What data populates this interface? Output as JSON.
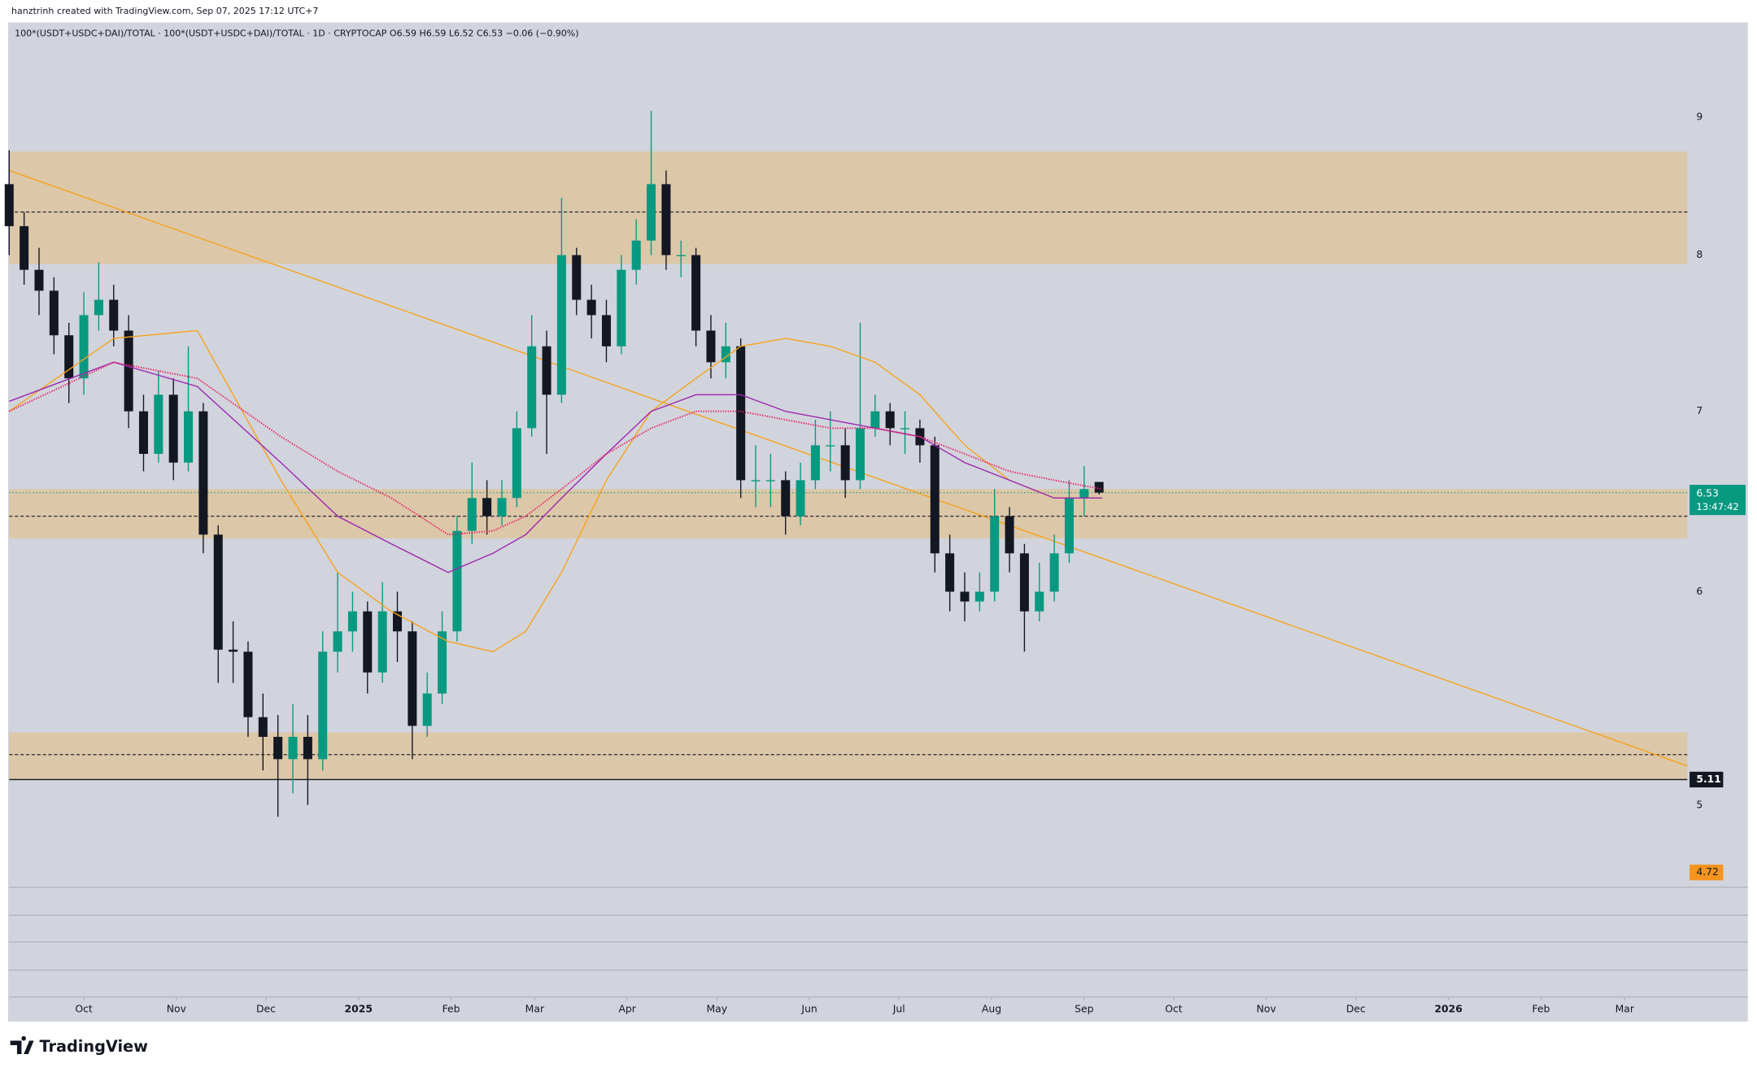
{
  "header": "hanztrinh created with TradingView.com, Sep 07, 2025 17:12 UTC+7",
  "brand": "TradingView",
  "chart_data": {
    "type": "candlestick",
    "legend": "100*(USDT+USDC+DAI)/TOTAL · 100*(USDT+USDC+DAI)/TOTAL · 1D · CRYPTOCAP  O6.59  H6.59  L6.52  C6.53  −0.06 (−0.90%)",
    "log_scale": true,
    "grid": false,
    "up_color": "#089981",
    "down_color": "#131722",
    "x": [
      0,
      5,
      10,
      15,
      20,
      25,
      30,
      35,
      40,
      45,
      50,
      55,
      60,
      65,
      70,
      75,
      80,
      85,
      90,
      95,
      100,
      105,
      110,
      115,
      120,
      125,
      130,
      135,
      140,
      145,
      150,
      155,
      160,
      165,
      170,
      175,
      180,
      185,
      190,
      195,
      200,
      205,
      210,
      215,
      220,
      225,
      230,
      235,
      240,
      245,
      250,
      255,
      260,
      265,
      270,
      275,
      280,
      285,
      290,
      295,
      300,
      305,
      310,
      315,
      320,
      325,
      330,
      335,
      340,
      345,
      350,
      355,
      360,
      365
    ],
    "open": [
      8.5,
      8.2,
      7.9,
      7.76,
      7.47,
      7.2,
      7.6,
      7.7,
      7.5,
      7.0,
      6.75,
      7.1,
      6.7,
      7.0,
      6.3,
      5.71,
      5.7,
      5.39,
      5.3,
      5.2,
      5.3,
      5.2,
      5.7,
      5.8,
      5.9,
      5.6,
      5.9,
      5.8,
      5.35,
      5.5,
      5.8,
      6.32,
      6.5,
      6.4,
      6.5,
      6.9,
      7.4,
      7.1,
      8.0,
      7.7,
      7.6,
      7.4,
      7.9,
      8.1,
      8.5,
      8.0,
      8.0,
      7.5,
      7.3,
      7.4,
      6.6,
      6.6,
      6.6,
      6.4,
      6.6,
      6.8,
      6.8,
      6.6,
      6.9,
      7.0,
      6.9,
      6.9,
      6.8,
      6.2,
      6.0,
      5.95,
      6.0,
      6.4,
      6.2,
      5.9,
      6.0,
      6.2,
      6.5,
      6.59
    ],
    "high": [
      8.75,
      8.3,
      8.05,
      7.85,
      7.55,
      7.75,
      7.95,
      7.8,
      7.6,
      7.1,
      7.25,
      7.2,
      7.4,
      7.05,
      6.35,
      5.85,
      5.75,
      5.5,
      5.4,
      5.45,
      5.4,
      5.8,
      6.1,
      6.0,
      5.95,
      6.05,
      6.0,
      5.85,
      5.6,
      5.9,
      6.4,
      6.7,
      6.6,
      6.6,
      7.0,
      7.6,
      7.5,
      8.4,
      8.05,
      7.8,
      7.7,
      8.0,
      8.25,
      9.05,
      8.6,
      8.1,
      8.05,
      7.6,
      7.55,
      7.45,
      6.8,
      6.75,
      6.65,
      6.7,
      6.95,
      7.0,
      6.9,
      7.55,
      7.1,
      7.05,
      7.0,
      6.95,
      6.85,
      6.3,
      6.1,
      6.1,
      6.55,
      6.45,
      6.25,
      6.15,
      6.3,
      6.6,
      6.68,
      6.59
    ],
    "low": [
      8.0,
      7.8,
      7.6,
      7.35,
      7.05,
      7.1,
      7.5,
      7.4,
      6.9,
      6.65,
      6.7,
      6.6,
      6.65,
      6.2,
      5.55,
      5.55,
      5.3,
      5.15,
      4.95,
      5.05,
      5.0,
      5.15,
      5.6,
      5.7,
      5.5,
      5.55,
      5.65,
      5.2,
      5.3,
      5.45,
      5.75,
      6.25,
      6.3,
      6.35,
      6.45,
      6.85,
      6.75,
      7.05,
      7.6,
      7.45,
      7.3,
      7.35,
      7.8,
      8.0,
      7.9,
      7.85,
      7.4,
      7.2,
      7.2,
      6.5,
      6.45,
      6.45,
      6.3,
      6.35,
      6.55,
      6.65,
      6.5,
      6.55,
      6.85,
      6.8,
      6.75,
      6.7,
      6.1,
      5.9,
      5.85,
      5.9,
      5.95,
      6.1,
      5.7,
      5.85,
      5.95,
      6.15,
      6.4,
      6.52
    ],
    "close": [
      8.2,
      7.9,
      7.76,
      7.47,
      7.2,
      7.6,
      7.7,
      7.5,
      7.0,
      6.75,
      7.1,
      6.7,
      7.0,
      6.3,
      5.71,
      5.7,
      5.39,
      5.3,
      5.2,
      5.3,
      5.2,
      5.7,
      5.8,
      5.9,
      5.6,
      5.9,
      5.8,
      5.35,
      5.5,
      5.8,
      6.32,
      6.5,
      6.4,
      6.5,
      6.9,
      7.4,
      7.1,
      8.0,
      7.7,
      7.6,
      7.4,
      7.9,
      8.1,
      8.5,
      8.0,
      8.0,
      7.5,
      7.3,
      7.4,
      6.6,
      6.6,
      6.6,
      6.4,
      6.6,
      6.8,
      6.8,
      6.6,
      6.9,
      7.0,
      6.9,
      6.9,
      6.8,
      6.2,
      6.0,
      5.95,
      6.0,
      6.4,
      6.2,
      5.9,
      6.0,
      6.2,
      6.5,
      6.55,
      6.53
    ],
    "lines_x": [
      0,
      35,
      63,
      91,
      110,
      128,
      147,
      162,
      173,
      185,
      200,
      215,
      230,
      245,
      260,
      275,
      290,
      305,
      320,
      335,
      350,
      366
    ],
    "lines": [
      {
        "color": "#f7a21b",
        "style": "solid",
        "values": [
          7.0,
          7.45,
          7.5,
          6.6,
          6.1,
          5.9,
          5.75,
          5.7,
          5.8,
          6.1,
          6.6,
          7.0,
          7.2,
          7.4,
          7.45,
          7.4,
          7.3,
          7.1,
          6.8,
          6.6,
          6.5,
          6.5
        ]
      },
      {
        "color": "#9c27b0",
        "style": "solid",
        "values": [
          7.06,
          7.3,
          7.15,
          6.7,
          6.4,
          6.25,
          6.1,
          6.2,
          6.3,
          6.5,
          6.75,
          7.0,
          7.1,
          7.1,
          7.0,
          6.95,
          6.9,
          6.85,
          6.7,
          6.6,
          6.5,
          6.5
        ]
      },
      {
        "color": "#e91e63",
        "style": "dotted",
        "values": [
          7.0,
          7.3,
          7.2,
          6.85,
          6.65,
          6.5,
          6.3,
          6.32,
          6.4,
          6.55,
          6.75,
          6.9,
          7.0,
          7.0,
          6.95,
          6.9,
          6.9,
          6.85,
          6.75,
          6.65,
          6.6,
          6.55
        ]
      }
    ],
    "zone_color": "#dcc7a8",
    "zones": [
      {
        "top": 8.74,
        "bottom": 7.94,
        "mid": 8.3
      },
      {
        "top": 6.55,
        "bottom": 6.28,
        "mid": 6.4
      },
      {
        "top": 5.32,
        "bottom": 5.11,
        "mid": 5.22
      }
    ],
    "trendline": {
      "color": "#f7a21b",
      "x": [
        0,
        562
      ],
      "y": [
        8.6,
        5.17
      ]
    },
    "last_price": {
      "value": 6.53,
      "countdown": "13:47:42",
      "color": "#089981"
    },
    "support_line": {
      "value": 5.11,
      "color": "#131722"
    },
    "alert_price": {
      "value": 4.72,
      "color": "#f7941d"
    },
    "xlim": [
      0,
      562
    ],
    "xticks": [
      {
        "value": 25,
        "label": "Oct"
      },
      {
        "value": 56,
        "label": "Nov"
      },
      {
        "value": 86,
        "label": "Dec"
      },
      {
        "value": 117,
        "label": "2025"
      },
      {
        "value": 148,
        "label": "Feb"
      },
      {
        "value": 176,
        "label": "Mar"
      },
      {
        "value": 207,
        "label": "Apr"
      },
      {
        "value": 237,
        "label": "May"
      },
      {
        "value": 268,
        "label": "Jun"
      },
      {
        "value": 298,
        "label": "Jul"
      },
      {
        "value": 329,
        "label": "Aug"
      },
      {
        "value": 360,
        "label": "Sep"
      },
      {
        "value": 390,
        "label": "Oct"
      },
      {
        "value": 421,
        "label": "Nov"
      },
      {
        "value": 451,
        "label": "Dec"
      },
      {
        "value": 482,
        "label": "2026"
      },
      {
        "value": 513,
        "label": "Feb"
      },
      {
        "value": 541,
        "label": "Mar"
      }
    ],
    "ylim": [
      4.67,
      9.76
    ],
    "yticks": [
      5,
      6,
      7,
      8,
      9
    ]
  }
}
